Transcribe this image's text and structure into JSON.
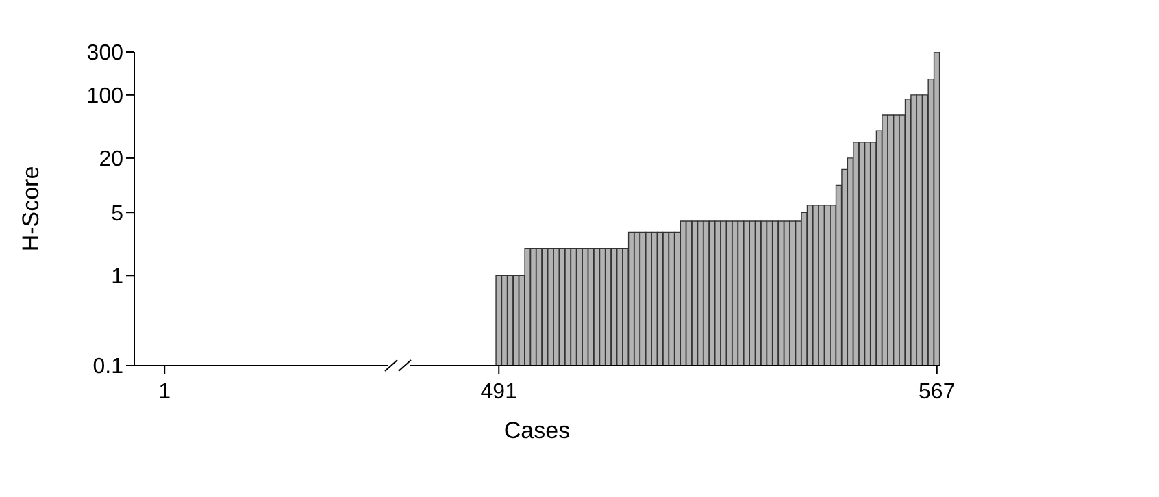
{
  "chart_data": {
    "type": "bar",
    "xlabel": "Cases",
    "ylabel": "H-Score",
    "log": "y",
    "ylim": [
      0.1,
      300
    ],
    "yticks": [
      0.1,
      1,
      5,
      20,
      100,
      300
    ],
    "grid": false,
    "legend": false,
    "color": "#b3b3b3",
    "categories": [
      "1",
      null,
      null,
      null,
      null,
      null,
      null,
      null,
      null,
      null,
      null,
      null,
      null,
      null,
      null,
      null,
      null,
      null,
      null,
      null,
      null,
      null,
      null,
      null,
      null,
      null,
      null,
      null,
      null,
      null,
      null,
      null,
      null,
      null,
      null,
      null,
      null,
      null,
      null,
      null,
      null,
      null,
      null,
      null,
      null,
      null,
      null,
      null,
      null,
      null,
      null,
      null,
      null,
      null,
      null,
      null,
      null,
      null,
      "491",
      null,
      null,
      null,
      null,
      null,
      null,
      null,
      null,
      null,
      null,
      null,
      null,
      null,
      null,
      null,
      null,
      null,
      null,
      null,
      null,
      null,
      null,
      null,
      null,
      null,
      null,
      null,
      null,
      null,
      null,
      null,
      null,
      null,
      null,
      null,
      null,
      null,
      null,
      null,
      null,
      null,
      null,
      null,
      null,
      null,
      null,
      null,
      null,
      null,
      null,
      null,
      null,
      null,
      null,
      null,
      null,
      null,
      null,
      null,
      null,
      null,
      null,
      null,
      null,
      null,
      null,
      null,
      null,
      null,
      null,
      null,
      null,
      null,
      null,
      null,
      "567"
    ],
    "values": [
      null,
      null,
      null,
      null,
      null,
      null,
      null,
      null,
      null,
      null,
      null,
      null,
      null,
      null,
      null,
      null,
      null,
      null,
      null,
      null,
      null,
      null,
      null,
      null,
      null,
      null,
      null,
      null,
      null,
      null,
      null,
      null,
      null,
      null,
      null,
      null,
      null,
      null,
      null,
      null,
      null,
      null,
      null,
      null,
      null,
      null,
      null,
      null,
      null,
      null,
      null,
      null,
      null,
      null,
      null,
      null,
      null,
      null,
      1,
      1,
      1,
      1,
      1,
      2,
      2,
      2,
      2,
      2,
      2,
      2,
      2,
      2,
      2,
      2,
      2,
      2,
      2,
      2,
      2,
      2,
      2,
      3,
      3,
      3,
      3,
      3,
      3,
      3,
      3,
      3,
      4,
      4,
      4,
      4,
      4,
      4,
      4,
      4,
      4,
      4,
      4,
      4,
      4,
      4,
      4,
      4,
      4,
      4,
      4,
      4,
      4,
      5,
      6,
      6,
      6,
      6,
      6,
      10,
      15,
      20,
      30,
      30,
      30,
      30,
      40,
      60,
      60,
      60,
      60,
      90,
      100,
      100,
      100,
      150,
      300
    ]
  }
}
